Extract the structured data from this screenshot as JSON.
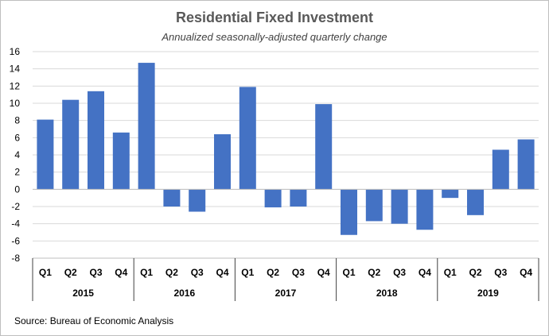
{
  "chart_data": {
    "type": "bar",
    "title": "Residential Fixed Investment",
    "subtitle": "Annualized seasonally-adjusted quarterly change",
    "source": "Source: Bureau of Economic Analysis",
    "ylim": [
      -8,
      16
    ],
    "yticks": [
      16,
      14,
      12,
      10,
      8,
      6,
      4,
      2,
      0,
      -2,
      -4,
      -6,
      -8
    ],
    "years": [
      "2015",
      "2016",
      "2017",
      "2018",
      "2019"
    ],
    "quarters": [
      "Q1",
      "Q2",
      "Q3",
      "Q4"
    ],
    "categories": [
      "2015 Q1",
      "2015 Q2",
      "2015 Q3",
      "2015 Q4",
      "2016 Q1",
      "2016 Q2",
      "2016 Q3",
      "2016 Q4",
      "2017 Q1",
      "2017 Q2",
      "2017 Q3",
      "2017 Q4",
      "2018 Q1",
      "2018 Q2",
      "2018 Q3",
      "2018 Q4",
      "2019 Q1",
      "2019 Q2",
      "2019 Q3",
      "2019 Q4"
    ],
    "values": [
      8.1,
      10.4,
      11.4,
      6.6,
      14.7,
      -2.0,
      -2.6,
      6.4,
      11.9,
      -2.1,
      -2.0,
      9.9,
      -5.3,
      -3.7,
      -4.0,
      -4.7,
      -1.0,
      -3.0,
      4.6,
      5.8
    ],
    "bar_color": "#4472c4",
    "grid": true
  }
}
